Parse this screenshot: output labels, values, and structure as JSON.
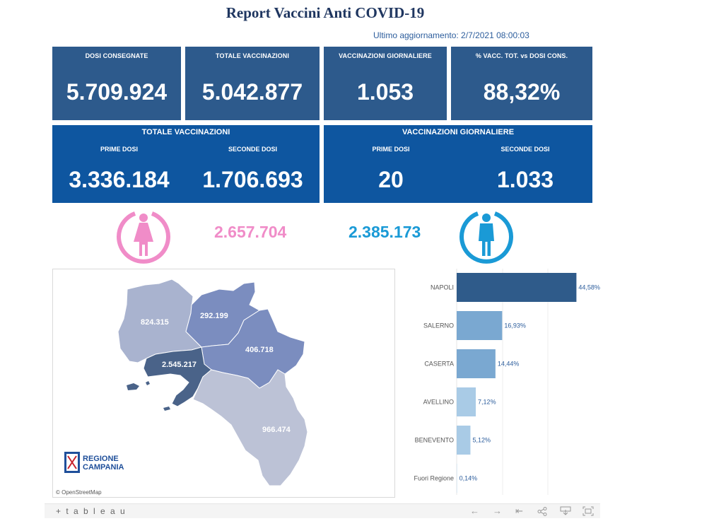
{
  "title": "Report Vaccini Anti COVID-19",
  "updated": "Ultimo aggiornamento: 2/7/2021 08:00:03",
  "kpis": [
    {
      "label": "DOSI  CONSEGNATE",
      "value": "5.709.924"
    },
    {
      "label": "TOTALE VACCINAZIONI",
      "value": "5.042.877"
    },
    {
      "label": "VACCINAZIONI GIORNALIERE",
      "value": "1.053"
    },
    {
      "label": "% VACC. TOT. vs DOSI CONS.",
      "value": "88,32%"
    }
  ],
  "totale": {
    "heading": "TOTALE VACCINAZIONI",
    "prime_label": "PRIME DOSI",
    "prime_value": "3.336.184",
    "seconde_label": "SECONDE DOSI",
    "seconde_value": "1.706.693"
  },
  "giornaliere": {
    "heading": "VACCINAZIONI GIORNALIERE",
    "prime_label": "PRIME DOSI",
    "prime_value": "20",
    "seconde_label": "SECONDE DOSI",
    "seconde_value": "1.033"
  },
  "gender": {
    "female_value": "2.657.704",
    "female_color": "#f08cc8",
    "male_value": "2.385.173",
    "male_color": "#1a9ad6",
    "female_icon": "female-person-icon",
    "male_icon": "male-person-icon"
  },
  "map": {
    "provinces": [
      {
        "name": "Caserta",
        "value": "824.315",
        "color": "#a9b3cf"
      },
      {
        "name": "Benevento",
        "value": "292.199",
        "color": "#7b8dbf"
      },
      {
        "name": "Avellino",
        "value": "406.718",
        "color": "#7b8dbf"
      },
      {
        "name": "Napoli",
        "value": "2.545.217",
        "color": "#4a6389"
      },
      {
        "name": "Salerno",
        "value": "966.474",
        "color": "#bcc2d6"
      }
    ],
    "attribution": "© OpenStreetMap",
    "logo_line1": "REGIONE",
    "logo_line2": "CAMPANIA"
  },
  "chart_data": {
    "type": "bar",
    "orientation": "horizontal",
    "categories": [
      "NAPOLI",
      "SALERNO",
      "CASERTA",
      "AVELLINO",
      "BENEVENTO",
      "Fuori Regione"
    ],
    "values": [
      44.58,
      16.93,
      14.44,
      7.12,
      5.12,
      0.14
    ],
    "labels": [
      "44,58%",
      "16,93%",
      "14,44%",
      "7,12%",
      "5,12%",
      "0,14%"
    ],
    "colors": [
      "#2f5b8a",
      "#7aa8d1",
      "#7aa8d1",
      "#a9cbe6",
      "#a9cbe6",
      "#c9def0"
    ],
    "xlim": [
      0,
      50
    ]
  },
  "toolbar": {
    "brand": "+ t a b l e a u",
    "icons": [
      "undo-icon",
      "redo-icon",
      "revert-icon",
      "share-icon",
      "download-icon",
      "fullscreen-icon"
    ]
  }
}
